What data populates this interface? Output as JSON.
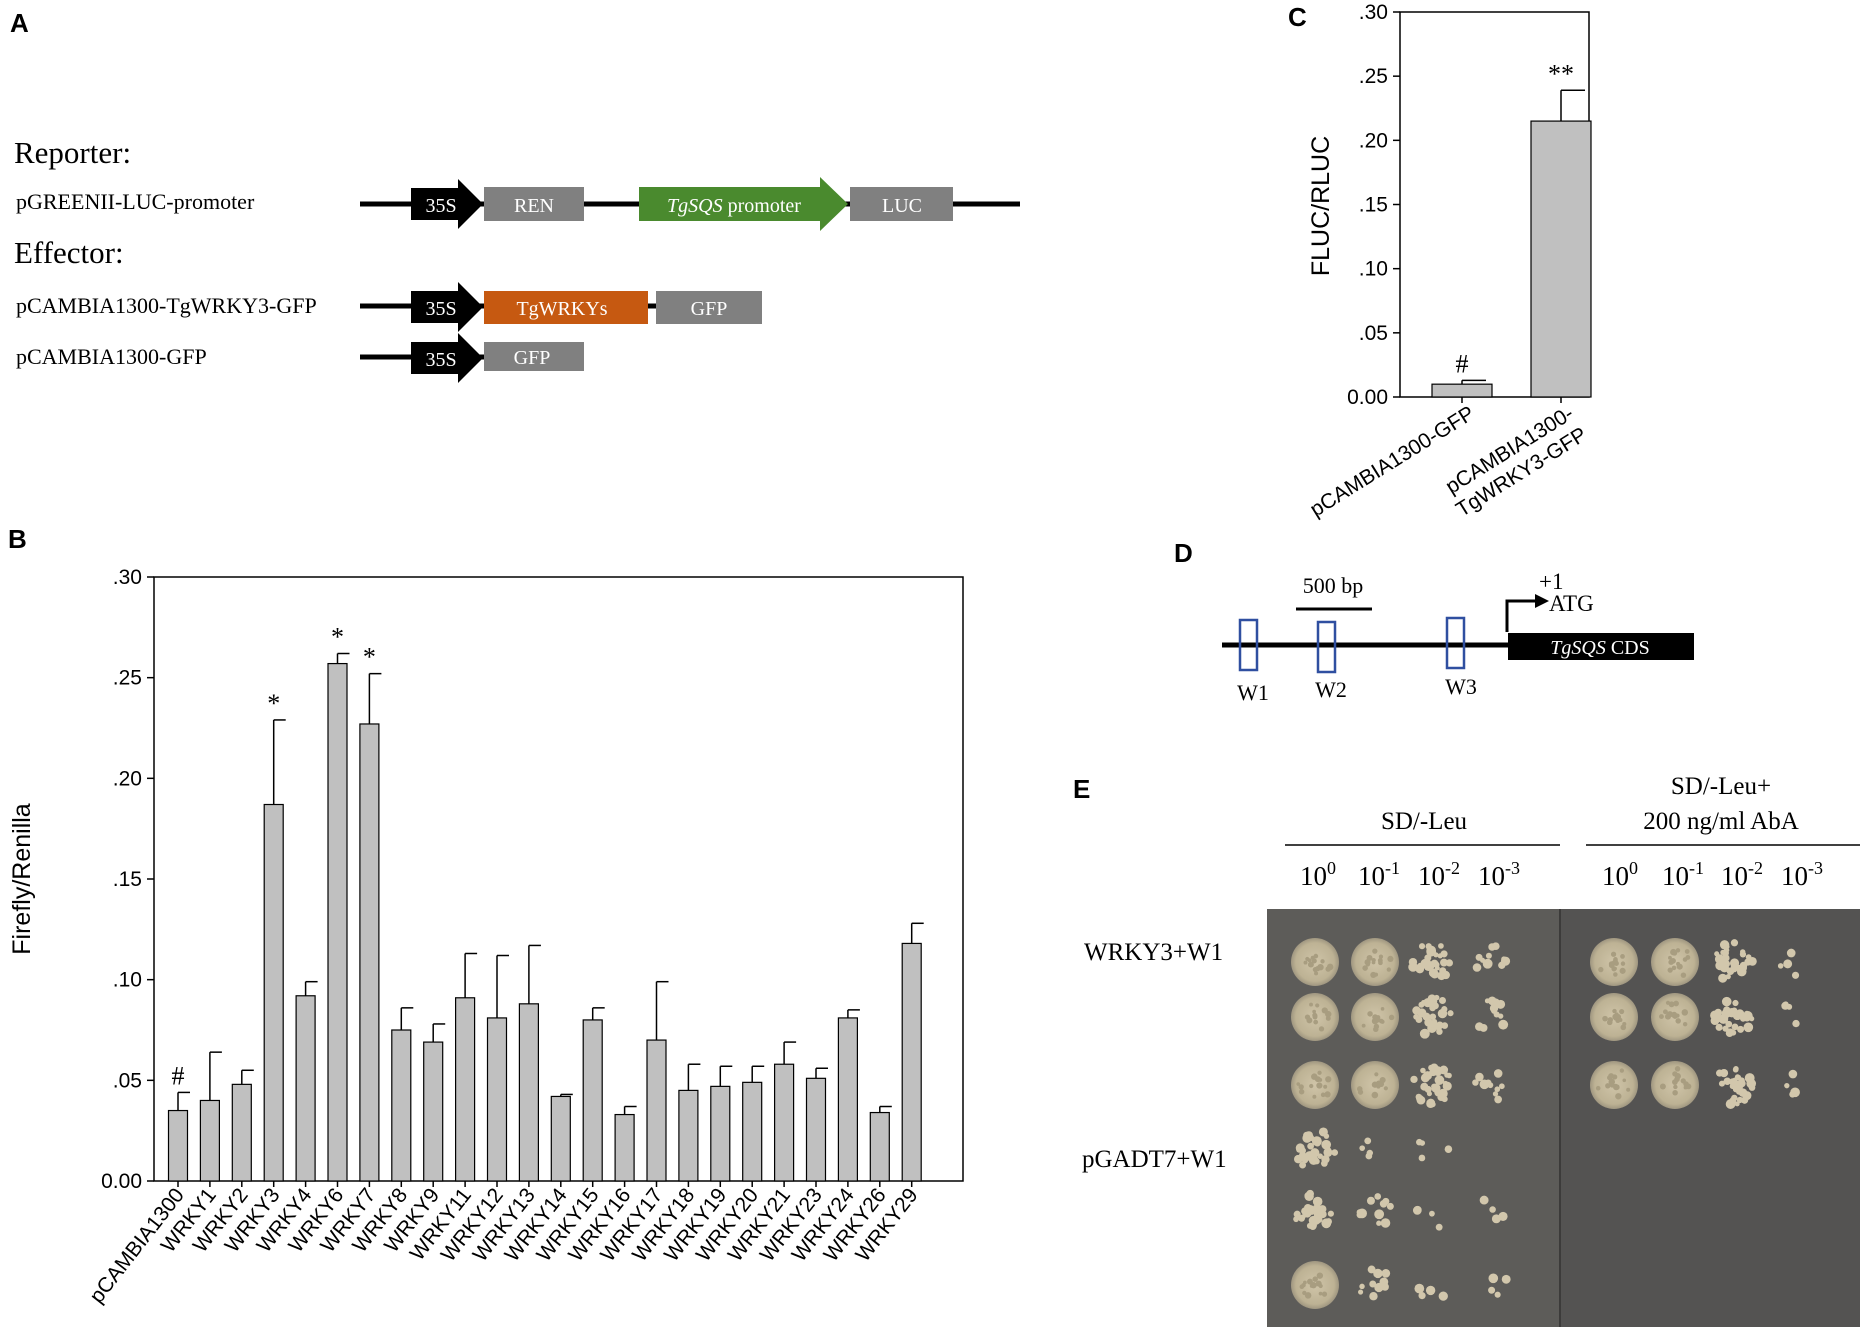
{
  "panel_labels": {
    "a": "A",
    "b": "B",
    "c": "C",
    "d": "D",
    "e": "E"
  },
  "panel_a": {
    "reporter_heading": "Reporter:",
    "effector_heading": "Effector:",
    "reporter_construct": "pGREENII-LUC-promoter",
    "effector_construct_1": "pCAMBIA1300-TgWRKY3-GFP",
    "effector_construct_2": "pCAMBIA1300-GFP",
    "box_35s": "35S",
    "box_ren": "REN",
    "box_promoter_gene": "TgSQS",
    "box_promoter_word": " promoter",
    "box_luc": "LUC",
    "box_tgwrkys": "TgWRKYs",
    "box_gfp": "GFP",
    "colors": {
      "black": "#000000",
      "gray": "#808080",
      "green": "#4a8a2e",
      "orange": "#c65911"
    }
  },
  "panel_d": {
    "scale_label": "500 bp",
    "tss_label": "+1",
    "atg_label": "ATG",
    "cds_gene": "TgSQS",
    "cds_word": "CDS",
    "sites": [
      "W1",
      "W2",
      "W3"
    ],
    "site_color": "#2f4fa0"
  },
  "panel_e": {
    "group1": "SD/-Leu",
    "group2_line1": "SD/-Leu+",
    "group2_line2": "200 ng/ml  AbA",
    "dilution_base": "10",
    "dilutions": [
      "0",
      "-1",
      "-2",
      "-3"
    ],
    "rows": [
      "WRKY3+W1",
      "pGADT7+W1"
    ]
  },
  "chart_data": [
    {
      "id": "B",
      "type": "bar",
      "title": "",
      "xlabel": "",
      "ylabel": "Firefly/Renilla",
      "ylim": [
        0,
        0.3
      ],
      "yticks": [
        0,
        0.05,
        0.1,
        0.15,
        0.2,
        0.25,
        0.3
      ],
      "ytick_labels": [
        "0.00",
        ".05",
        ".10",
        ".15",
        ".20",
        ".25",
        ".30"
      ],
      "categories": [
        "pCAMBIA1300",
        "WRKY1",
        "WRKY2",
        "WRKY3",
        "WRKY4",
        "WRKY6",
        "WRKY7",
        "WRKY8",
        "WRKY9",
        "WRKY11",
        "WRKY12",
        "WRKY13",
        "WRKY14",
        "WRKY15",
        "WRKY16",
        "WRKY17",
        "WRKY18",
        "WRKY19",
        "WRKY20",
        "WRKY21",
        "WRKY23",
        "WRKY24",
        "WRKY26",
        "WRKY29"
      ],
      "values": [
        0.035,
        0.04,
        0.048,
        0.187,
        0.092,
        0.257,
        0.227,
        0.075,
        0.069,
        0.091,
        0.081,
        0.088,
        0.042,
        0.08,
        0.033,
        0.07,
        0.045,
        0.047,
        0.049,
        0.058,
        0.051,
        0.081,
        0.034,
        0.118
      ],
      "errors": [
        0.009,
        0.024,
        0.007,
        0.042,
        0.007,
        0.005,
        0.025,
        0.011,
        0.009,
        0.022,
        0.031,
        0.029,
        0.001,
        0.006,
        0.004,
        0.029,
        0.013,
        0.01,
        0.008,
        0.011,
        0.005,
        0.004,
        0.003,
        0.01
      ],
      "annotations": [
        "#",
        "",
        "",
        "*",
        "",
        "*",
        "*",
        "",
        "",
        "",
        "",
        "",
        "",
        "",
        "",
        "",
        "",
        "",
        "",
        "",
        "",
        "",
        "",
        ""
      ],
      "bar_color": "#c0c0c0"
    },
    {
      "id": "C",
      "type": "bar",
      "title": "",
      "xlabel": "",
      "ylabel": "FLUC/RLUC",
      "ylim": [
        0,
        0.3
      ],
      "yticks": [
        0,
        0.05,
        0.1,
        0.15,
        0.2,
        0.25,
        0.3
      ],
      "ytick_labels": [
        "0.00",
        ".05",
        ".10",
        ".15",
        ".20",
        ".25",
        ".30"
      ],
      "categories": [
        "pCAMBIA1300-GFP",
        "pCAMBIA1300-\nTgWRKY3-GFP"
      ],
      "category_lines": [
        [
          "pCAMBIA1300-GFP"
        ],
        [
          "pCAMBIA1300-",
          "TgWRKY3-GFP"
        ]
      ],
      "values": [
        0.01,
        0.215
      ],
      "errors": [
        0.003,
        0.024
      ],
      "annotations": [
        "#",
        "**"
      ],
      "bar_color": "#c0c0c0"
    }
  ]
}
